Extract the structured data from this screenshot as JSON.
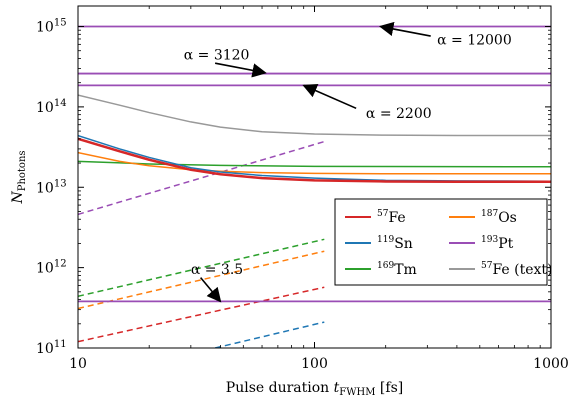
{
  "chart_data": {
    "type": "line",
    "xlabel": "Pulse duration t_FWHM [fs]",
    "ylabel": "N_Photons",
    "xscale": "log",
    "yscale": "log",
    "xlim": [
      10,
      1000
    ],
    "ylim": [
      100000000000.0,
      1800000000000000.0
    ],
    "grid": false,
    "legend_position": "lower-right",
    "x_ticks": [
      {
        "value": 10,
        "label": "10"
      },
      {
        "value": 100,
        "label": "100"
      },
      {
        "value": 1000,
        "label": "1000"
      }
    ],
    "y_ticks": [
      {
        "value": 100000000000.0,
        "label": "10",
        "exp": "11"
      },
      {
        "value": 1000000000000.0,
        "label": "10",
        "exp": "12"
      },
      {
        "value": 10000000000000.0,
        "label": "10",
        "exp": "13"
      },
      {
        "value": 100000000000000.0,
        "label": "10",
        "exp": "14"
      },
      {
        "value": 1000000000000000.0,
        "label": "10",
        "exp": "15"
      }
    ],
    "legend": [
      {
        "mass": "57",
        "element": "Fe",
        "suffix": "",
        "color": "#d62728"
      },
      {
        "mass": "187",
        "element": "Os",
        "suffix": "",
        "color": "#ff7f0e"
      },
      {
        "mass": "119",
        "element": "Sn",
        "suffix": "",
        "color": "#1f77b4"
      },
      {
        "mass": "193",
        "element": "Pt",
        "suffix": "",
        "color": "#9a4db5"
      },
      {
        "mass": "169",
        "element": "Tm",
        "suffix": "",
        "color": "#2ca02c"
      },
      {
        "mass": "57",
        "element": "Fe",
        "suffix": " (text)",
        "color": "#999999"
      }
    ],
    "series": [
      {
        "name": "57Fe",
        "style": "solid",
        "color": "#d62728",
        "width": 2.5,
        "x": [
          10,
          15,
          20,
          30,
          40,
          60,
          100,
          200,
          400,
          1000
        ],
        "y": [
          40000000000000.0,
          28000000000000.0,
          22000000000000.0,
          16500000000000.0,
          14500000000000.0,
          13000000000000.0,
          12200000000000.0,
          11800000000000.0,
          11700000000000.0,
          11700000000000.0
        ]
      },
      {
        "name": "119Sn",
        "style": "solid",
        "color": "#1f77b4",
        "width": 1.5,
        "x": [
          10,
          15,
          20,
          30,
          40,
          60,
          100,
          200,
          400,
          1000
        ],
        "y": [
          44000000000000.0,
          30000000000000.0,
          23500000000000.0,
          17500000000000.0,
          15500000000000.0,
          14000000000000.0,
          13000000000000.0,
          12200000000000.0,
          12000000000000.0,
          11900000000000.0
        ]
      },
      {
        "name": "187Os",
        "style": "solid",
        "color": "#ff7f0e",
        "width": 1.5,
        "x": [
          10,
          15,
          20,
          30,
          40,
          60,
          100,
          200,
          400,
          1000
        ],
        "y": [
          27000000000000.0,
          21000000000000.0,
          18500000000000.0,
          16500000000000.0,
          15800000000000.0,
          15200000000000.0,
          14900000000000.0,
          14700000000000.0,
          14700000000000.0,
          14700000000000.0
        ]
      },
      {
        "name": "169Tm",
        "style": "solid",
        "color": "#2ca02c",
        "width": 1.5,
        "x": [
          10,
          20,
          40,
          100,
          200,
          1000
        ],
        "y": [
          21000000000000.0,
          19500000000000.0,
          18700000000000.0,
          18200000000000.0,
          18100000000000.0,
          18000000000000.0
        ]
      },
      {
        "name": "57Fe (text)",
        "style": "solid",
        "color": "#999999",
        "width": 1.5,
        "x": [
          10,
          15,
          20,
          30,
          40,
          60,
          100,
          200,
          400,
          1000
        ],
        "y": [
          140000000000000.0,
          105000000000000.0,
          85000000000000.0,
          65000000000000.0,
          56000000000000.0,
          49000000000000.0,
          46000000000000.0,
          44500000000000.0,
          44000000000000.0,
          44000000000000.0
        ]
      },
      {
        "name": "193Pt alpha=12000",
        "style": "solid",
        "color": "#9a4db5",
        "width": 1.8,
        "x": [
          10,
          1000
        ],
        "y": [
          1000000000000000.0,
          1000000000000000.0
        ]
      },
      {
        "name": "193Pt alpha=3120",
        "style": "solid",
        "color": "#9a4db5",
        "width": 1.8,
        "x": [
          10,
          1000
        ],
        "y": [
          260000000000000.0,
          260000000000000.0
        ]
      },
      {
        "name": "193Pt alpha=2200",
        "style": "solid",
        "color": "#9a4db5",
        "width": 1.8,
        "x": [
          10,
          1000
        ],
        "y": [
          185000000000000.0,
          185000000000000.0
        ]
      },
      {
        "name": "193Pt alpha=3.5",
        "style": "solid",
        "color": "#9a4db5",
        "width": 1.8,
        "x": [
          10,
          1000
        ],
        "y": [
          380000000000.0,
          380000000000.0
        ]
      },
      {
        "name": "193Pt dashed",
        "style": "dashed",
        "color": "#9a4db5",
        "width": 1.5,
        "x": [
          10,
          110
        ],
        "y": [
          4600000000000.0,
          37000000000000.0
        ]
      },
      {
        "name": "169Tm dashed",
        "style": "dashed",
        "color": "#2ca02c",
        "width": 1.5,
        "x": [
          10,
          110
        ],
        "y": [
          440000000000.0,
          2250000000000.0
        ]
      },
      {
        "name": "187Os dashed",
        "style": "dashed",
        "color": "#ff7f0e",
        "width": 1.5,
        "x": [
          10,
          110
        ],
        "y": [
          310000000000.0,
          1600000000000.0
        ]
      },
      {
        "name": "57Fe dashed",
        "style": "dashed",
        "color": "#d62728",
        "width": 1.5,
        "x": [
          10,
          110
        ],
        "y": [
          120000000000.0,
          570000000000.0
        ]
      },
      {
        "name": "119Sn dashed",
        "style": "dashed",
        "color": "#1f77b4",
        "width": 1.5,
        "x": [
          38,
          110
        ],
        "y": [
          100000000000.0,
          210000000000.0
        ]
      }
    ],
    "annotations": [
      {
        "text": "α = 12000",
        "label_x": 330,
        "label_y": 690000000000000.0,
        "anchor": "start",
        "arrow_from_x": 310,
        "arrow_from_y": 760000000000000.0,
        "arrow_to_x": 190,
        "arrow_to_y": 1000000000000000.0
      },
      {
        "text": "α = 3120",
        "label_x": 28,
        "label_y": 450000000000000.0,
        "anchor": "start",
        "arrow_from_x": 38,
        "arrow_from_y": 350000000000000.0,
        "arrow_to_x": 62,
        "arrow_to_y": 265000000000000.0
      },
      {
        "text": "α = 2200",
        "label_x": 165,
        "label_y": 84000000000000.0,
        "anchor": "start",
        "arrow_from_x": 150,
        "arrow_from_y": 96000000000000.0,
        "arrow_to_x": 90,
        "arrow_to_y": 185000000000000.0
      },
      {
        "text": "α = 3.5",
        "label_x": 30,
        "label_y": 960000000000.0,
        "anchor": "start",
        "arrow_from_x": 33,
        "arrow_from_y": 750000000000.0,
        "arrow_to_x": 40,
        "arrow_to_y": 380000000000.0
      }
    ]
  }
}
